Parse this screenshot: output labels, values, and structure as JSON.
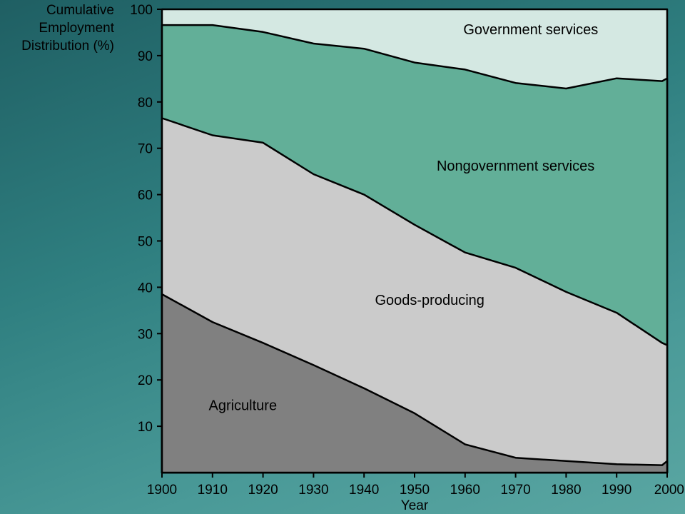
{
  "chart_data": {
    "type": "area",
    "stacked": true,
    "title": "",
    "ylabel_lines": [
      "Cumulative",
      "Employment",
      "Distribution (%)"
    ],
    "xlabel": "Year",
    "xlim": [
      1900,
      2000
    ],
    "ylim": [
      0,
      100
    ],
    "x_ticks": [
      "1900",
      "1910",
      "1920",
      "1930",
      "1940",
      "1950",
      "1960",
      "1970",
      "1980",
      "1990",
      "2000"
    ],
    "y_ticks": [
      "10",
      "20",
      "30",
      "40",
      "50",
      "60",
      "70",
      "80",
      "90",
      "100"
    ],
    "x": [
      1900,
      1910,
      1920,
      1930,
      1940,
      1950,
      1960,
      1970,
      1980,
      1990,
      1999,
      2000
    ],
    "series": [
      {
        "name": "Agriculture",
        "color": "#808080",
        "cumulative": [
          38.5,
          32.5,
          28.0,
          23.2,
          18.2,
          12.8,
          6.1,
          3.2,
          2.5,
          1.8,
          1.6,
          2.5
        ]
      },
      {
        "name": "Goods-producing",
        "color": "#cbcbcb",
        "cumulative": [
          76.5,
          72.8,
          71.2,
          64.4,
          60.0,
          53.5,
          47.5,
          44.2,
          39.0,
          34.5,
          28.0,
          27.5
        ]
      },
      {
        "name": "Nongovernment services",
        "color": "#62af98",
        "cumulative": [
          96.6,
          96.6,
          95.1,
          92.6,
          91.5,
          88.5,
          87.0,
          84.1,
          82.9,
          85.1,
          84.5,
          85.1
        ]
      },
      {
        "name": "Government services",
        "color": "#d4e8e2",
        "cumulative": [
          100,
          100,
          100,
          100,
          100,
          100,
          100,
          100,
          100,
          100,
          100,
          100
        ]
      }
    ],
    "area_labels": [
      {
        "series": "Agriculture",
        "text": "Agriculture",
        "x": 1916,
        "y": 13.5
      },
      {
        "series": "Goods-producing",
        "text": "Goods-producing",
        "x": 1953,
        "y": 36.2
      },
      {
        "series": "Nongovernment services",
        "text": "Nongovernment services",
        "x": 1970,
        "y": 65.2
      },
      {
        "series": "Government services",
        "text": "Government services",
        "x": 1973,
        "y": 94.6
      }
    ],
    "grid": false,
    "legend": "none"
  }
}
